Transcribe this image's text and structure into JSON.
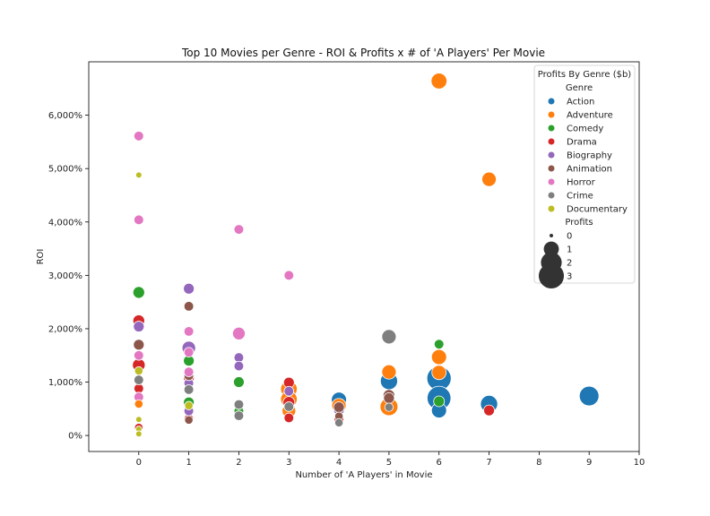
{
  "chart_data": {
    "type": "scatter",
    "title": "Top 10 Movies per Genre - ROI & Profits x # of  'A Players' Per Movie",
    "xlabel": "Number of   'A Players' in Movie",
    "ylabel": "ROI",
    "xlim": [
      -1,
      10
    ],
    "ylim": [
      -300,
      7000
    ],
    "x_ticks": [
      0,
      1,
      2,
      3,
      4,
      5,
      6,
      7,
      8,
      9,
      10
    ],
    "y_ticks": [
      0,
      1000,
      2000,
      3000,
      4000,
      5000,
      6000
    ],
    "y_tick_labels": [
      "0%",
      "1,000%",
      "2,000%",
      "3,000%",
      "4,000%",
      "5,000%",
      "6,000%"
    ],
    "grid": false,
    "legend": {
      "title": "Profits By Genre ($b)",
      "placement": "top-right",
      "hue_title": "Genre",
      "size_title": "Profits",
      "size_entries": [
        {
          "label": "0",
          "value": 0
        },
        {
          "label": "1",
          "value": 1
        },
        {
          "label": "2",
          "value": 2
        },
        {
          "label": "3",
          "value": 3
        }
      ]
    },
    "series": [
      {
        "name": "Action",
        "color": "#1f77b4",
        "points": [
          {
            "x": 4,
            "y": 670,
            "size": 0.9
          },
          {
            "x": 5,
            "y": 1020,
            "size": 1.2
          },
          {
            "x": 6,
            "y": 1070,
            "size": 2.5
          },
          {
            "x": 6,
            "y": 700,
            "size": 2.4
          },
          {
            "x": 6,
            "y": 470,
            "size": 0.9
          },
          {
            "x": 7,
            "y": 590,
            "size": 1.2
          },
          {
            "x": 9,
            "y": 740,
            "size": 1.6
          }
        ]
      },
      {
        "name": "Adventure",
        "color": "#ff7f0e",
        "points": [
          {
            "x": 6,
            "y": 6640,
            "size": 1.0
          },
          {
            "x": 7,
            "y": 4800,
            "size": 0.8
          },
          {
            "x": 6,
            "y": 1470,
            "size": 0.9
          },
          {
            "x": 5,
            "y": 1190,
            "size": 0.8
          },
          {
            "x": 6,
            "y": 1180,
            "size": 0.8
          },
          {
            "x": 3,
            "y": 870,
            "size": 1.1
          },
          {
            "x": 3,
            "y": 680,
            "size": 1.1
          },
          {
            "x": 4,
            "y": 560,
            "size": 0.8
          },
          {
            "x": 5,
            "y": 540,
            "size": 1.3
          },
          {
            "x": 3,
            "y": 460,
            "size": 0.7
          },
          {
            "x": 0,
            "y": 590,
            "size": 0.2
          }
        ]
      },
      {
        "name": "Comedy",
        "color": "#2ca02c",
        "points": [
          {
            "x": 0,
            "y": 2680,
            "size": 0.5
          },
          {
            "x": 1,
            "y": 1400,
            "size": 0.4
          },
          {
            "x": 1,
            "y": 620,
            "size": 0.4
          },
          {
            "x": 2,
            "y": 1000,
            "size": 0.4
          },
          {
            "x": 2,
            "y": 460,
            "size": 0.3
          },
          {
            "x": 6,
            "y": 1710,
            "size": 0.3
          },
          {
            "x": 6,
            "y": 640,
            "size": 0.4
          }
        ]
      },
      {
        "name": "Drama",
        "color": "#d62728",
        "points": [
          {
            "x": 0,
            "y": 2150,
            "size": 0.5
          },
          {
            "x": 0,
            "y": 1320,
            "size": 0.6
          },
          {
            "x": 0,
            "y": 880,
            "size": 0.3
          },
          {
            "x": 0,
            "y": 150,
            "size": 0.2
          },
          {
            "x": 1,
            "y": 1080,
            "size": 0.4
          },
          {
            "x": 1,
            "y": 310,
            "size": 0.3
          },
          {
            "x": 3,
            "y": 990,
            "size": 0.4
          },
          {
            "x": 3,
            "y": 620,
            "size": 0.5
          },
          {
            "x": 3,
            "y": 330,
            "size": 0.3
          },
          {
            "x": 4,
            "y": 300,
            "size": 0.3
          },
          {
            "x": 7,
            "y": 470,
            "size": 0.4
          }
        ]
      },
      {
        "name": "Biography",
        "color": "#9467bd",
        "points": [
          {
            "x": 0,
            "y": 2040,
            "size": 0.4
          },
          {
            "x": 1,
            "y": 2750,
            "size": 0.4
          },
          {
            "x": 1,
            "y": 1640,
            "size": 0.7
          },
          {
            "x": 1,
            "y": 980,
            "size": 0.3
          },
          {
            "x": 1,
            "y": 460,
            "size": 0.3
          },
          {
            "x": 2,
            "y": 1460,
            "size": 0.3
          },
          {
            "x": 2,
            "y": 1300,
            "size": 0.3
          },
          {
            "x": 3,
            "y": 830,
            "size": 0.3
          },
          {
            "x": 4,
            "y": 480,
            "size": 0.4
          }
        ]
      },
      {
        "name": "Animation",
        "color": "#8c564b",
        "points": [
          {
            "x": 0,
            "y": 1700,
            "size": 0.4
          },
          {
            "x": 1,
            "y": 2420,
            "size": 0.3
          },
          {
            "x": 1,
            "y": 1120,
            "size": 0.3
          },
          {
            "x": 1,
            "y": 290,
            "size": 0.2
          },
          {
            "x": 2,
            "y": 580,
            "size": 0.3
          },
          {
            "x": 4,
            "y": 530,
            "size": 0.4
          },
          {
            "x": 4,
            "y": 360,
            "size": 0.2
          },
          {
            "x": 5,
            "y": 750,
            "size": 0.5
          },
          {
            "x": 5,
            "y": 700,
            "size": 0.4
          }
        ]
      },
      {
        "name": "Horror",
        "color": "#e377c2",
        "points": [
          {
            "x": 0,
            "y": 5610,
            "size": 0.3
          },
          {
            "x": 0,
            "y": 4040,
            "size": 0.3
          },
          {
            "x": 0,
            "y": 1500,
            "size": 0.3
          },
          {
            "x": 0,
            "y": 720,
            "size": 0.3
          },
          {
            "x": 1,
            "y": 1950,
            "size": 0.3
          },
          {
            "x": 1,
            "y": 1560,
            "size": 0.3
          },
          {
            "x": 1,
            "y": 1190,
            "size": 0.3
          },
          {
            "x": 2,
            "y": 3860,
            "size": 0.3
          },
          {
            "x": 2,
            "y": 1910,
            "size": 0.6
          },
          {
            "x": 3,
            "y": 3000,
            "size": 0.3
          }
        ]
      },
      {
        "name": "Crime",
        "color": "#7f7f7f",
        "points": [
          {
            "x": 0,
            "y": 1040,
            "size": 0.3
          },
          {
            "x": 1,
            "y": 860,
            "size": 0.3
          },
          {
            "x": 2,
            "y": 580,
            "size": 0.3
          },
          {
            "x": 2,
            "y": 370,
            "size": 0.3
          },
          {
            "x": 3,
            "y": 540,
            "size": 0.3
          },
          {
            "x": 4,
            "y": 240,
            "size": 0.2
          },
          {
            "x": 5,
            "y": 1850,
            "size": 0.8
          },
          {
            "x": 5,
            "y": 530,
            "size": 0.2
          }
        ]
      },
      {
        "name": "Documentary",
        "color": "#bcbd22",
        "points": [
          {
            "x": 0,
            "y": 4880,
            "size": 0.05
          },
          {
            "x": 0,
            "y": 1210,
            "size": 0.2
          },
          {
            "x": 0,
            "y": 300,
            "size": 0.05
          },
          {
            "x": 0,
            "y": 120,
            "size": 0.05
          },
          {
            "x": 0,
            "y": 30,
            "size": 0.05
          },
          {
            "x": 1,
            "y": 560,
            "size": 0.2
          }
        ]
      }
    ]
  }
}
